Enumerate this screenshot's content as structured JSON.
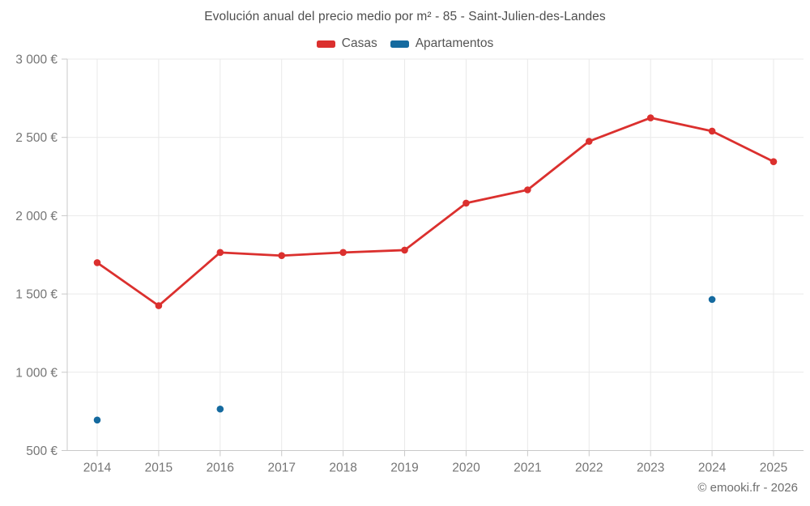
{
  "title": "Evolución anual del precio medio por m² - 85 - Saint-Julien-des-Landes",
  "footer": "© emooki.fr - 2026",
  "legend": {
    "items": [
      {
        "label": "Casas",
        "color": "#db302e"
      },
      {
        "label": "Apartamentos",
        "color": "#156a9f"
      }
    ]
  },
  "chart_data": {
    "type": "line",
    "title": "Evolución anual del precio medio por m² - 85 - Saint-Julien-des-Landes",
    "categories": [
      "2014",
      "2015",
      "2016",
      "2017",
      "2018",
      "2019",
      "2020",
      "2021",
      "2022",
      "2023",
      "2024",
      "2025"
    ],
    "series": [
      {
        "name": "Casas",
        "color": "#db302e",
        "style": "line+markers",
        "values": [
          1700,
          1425,
          1765,
          1745,
          1765,
          1780,
          2080,
          2165,
          2475,
          2625,
          2540,
          2345
        ]
      },
      {
        "name": "Apartamentos",
        "color": "#156a9f",
        "style": "markers",
        "values": [
          695,
          null,
          765,
          null,
          null,
          null,
          null,
          null,
          null,
          null,
          1465,
          null
        ]
      }
    ],
    "ylim": [
      500,
      3000
    ],
    "yticks": [
      {
        "value": 500,
        "label": "500 €"
      },
      {
        "value": 1000,
        "label": "1 000 €"
      },
      {
        "value": 1500,
        "label": "1 500 €"
      },
      {
        "value": 2000,
        "label": "2 000 €"
      },
      {
        "value": 2500,
        "label": "2 500 €"
      },
      {
        "value": 3000,
        "label": "3 000 €"
      }
    ],
    "grid": true,
    "legend_position": "top",
    "unit": "€"
  }
}
